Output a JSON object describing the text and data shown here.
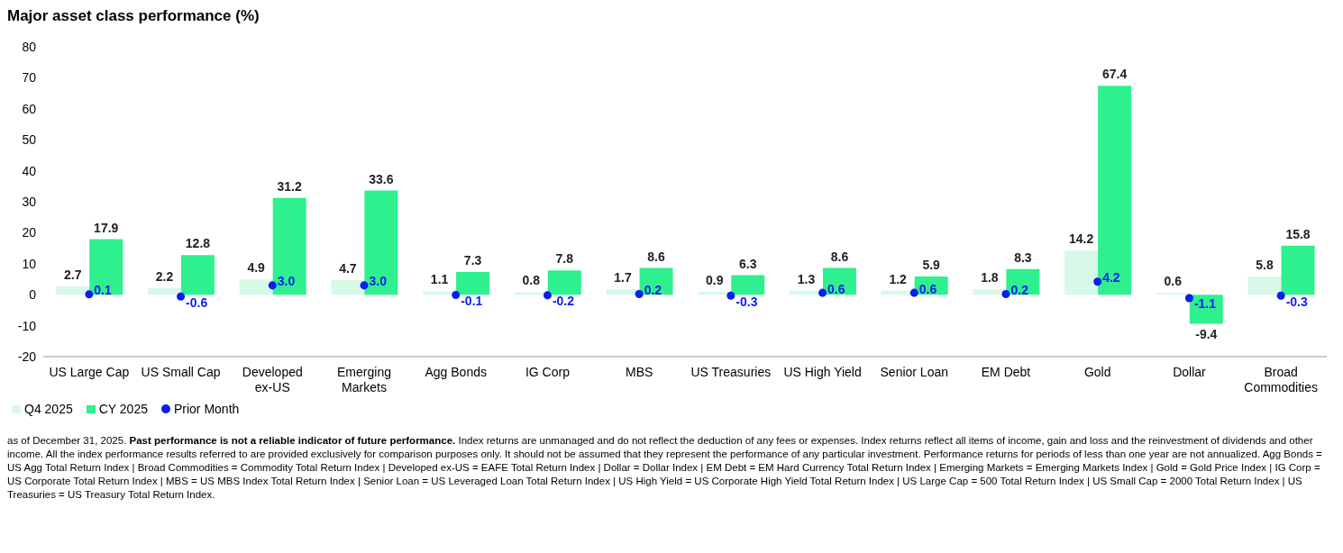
{
  "chart_data": {
    "type": "bar",
    "title": "Major asset class performance (%)",
    "categories": [
      "US Large Cap",
      "US Small Cap",
      "Developed ex-US",
      "Emerging Markets",
      "Agg Bonds",
      "IG Corp",
      "MBS",
      "US Treasuries",
      "US High Yield",
      "Senior Loan",
      "EM Debt",
      "Gold",
      "Dollar",
      "Broad Commodities"
    ],
    "series": [
      {
        "name": "Q4 2025",
        "color": "#d8f8e8",
        "values": [
          2.7,
          2.2,
          4.9,
          4.7,
          1.1,
          0.8,
          1.7,
          0.9,
          1.3,
          1.2,
          1.8,
          14.2,
          0.6,
          5.8
        ],
        "value_labels": [
          "2.7",
          "2.2",
          "4.9",
          "4.7",
          "1.1",
          "0.8",
          "1.7",
          "0.9",
          "1.3",
          "1.2",
          "1.8",
          "14.2",
          "0.6",
          "5.8"
        ]
      },
      {
        "name": "CY 2025",
        "color": "#2ef08e",
        "values": [
          17.9,
          12.8,
          31.2,
          33.6,
          7.3,
          7.8,
          8.6,
          6.3,
          8.6,
          5.9,
          8.3,
          67.4,
          -9.4,
          15.8
        ],
        "value_labels": [
          "17.9",
          "12.8",
          "31.2",
          "33.6",
          "7.3",
          "7.8",
          "8.6",
          "6.3",
          "8.6",
          "5.9",
          "8.3",
          "67.4",
          "-9.4",
          "15.8"
        ]
      },
      {
        "name": "Prior Month",
        "type": "scatter",
        "color": "#0a1ef0",
        "marker": "circle",
        "values": [
          0.1,
          -0.6,
          3.0,
          3.0,
          -0.1,
          -0.2,
          0.2,
          -0.3,
          0.6,
          0.6,
          0.2,
          4.2,
          -1.1,
          -0.3
        ],
        "value_labels": [
          "0.1",
          "-0.6",
          "3.0",
          "3.0",
          "-0.1",
          "-0.2",
          "0.2",
          "-0.3",
          "0.6",
          "0.6",
          "0.2",
          "4.2",
          "-1.1",
          "-0.3"
        ]
      }
    ],
    "ylim": [
      -20,
      80
    ],
    "yticks": [
      -20,
      -10,
      0,
      10,
      20,
      30,
      40,
      50,
      60,
      70,
      80
    ],
    "grid": false,
    "legend": "bottom left",
    "annotations": [
      "as of December 31, 2025.",
      "Past performance is not a reliable indicator of future performance.",
      "Index returns are unmanaged and do not reflect the deduction of any fees or expenses. Index returns reflect all items of income, gain and loss and the reinvestment of dividends and other income. All the index performance results referred to are provided exclusively for comparison purposes only. It should not be assumed that they represent the performance of any particular investment. Performance returns for periods of less than one year are not annualized. Agg Bonds = US Agg Total Return Index | Broad Commodities = Commodity Total Return Index | Developed ex-US = EAFE Total Return Index | Dollar = Dollar Index | EM Debt = EM Hard Currency Total Return Index | Emerging Markets = Emerging Markets Index | Gold = Gold Price Index | IG Corp = US Corporate Total Return Index | MBS = US MBS Index Total Return Index | Senior Loan = US Leveraged Loan Total Return Index | US High Yield = US Corporate High Yield Total Return Index | US Large Cap = 500 Total Return Index | US Small Cap = 2000 Total Return Index | US Treasuries = US Treasury Total Return Index."
    ]
  }
}
